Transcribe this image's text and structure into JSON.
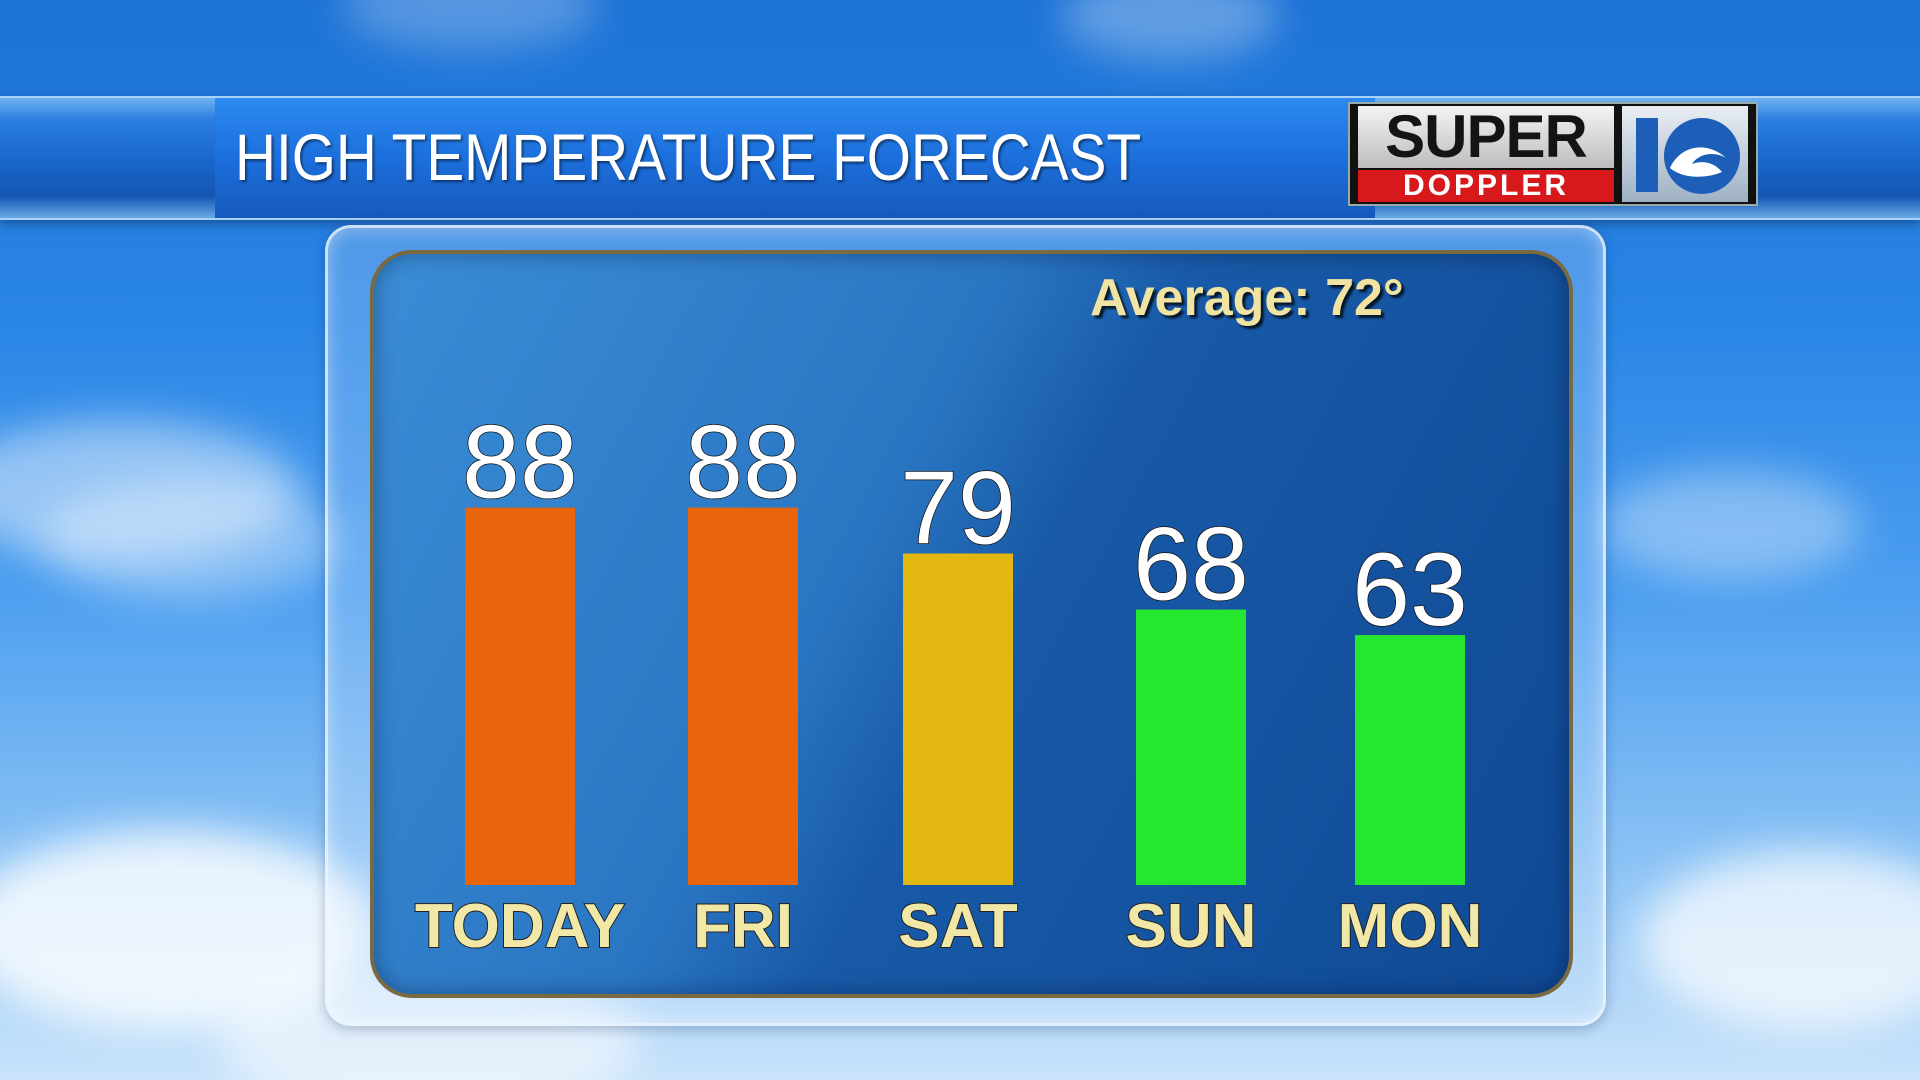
{
  "header": {
    "title": "HIGH TEMPERATURE FORECAST"
  },
  "logo": {
    "line1": "SUPER",
    "line2": "DOPPLER",
    "mark_colors": {
      "blue": "#1d5fb8",
      "wave": "#ffffff"
    }
  },
  "average_label": "Average: 72°",
  "colors": {
    "hot": "#e8650e",
    "warm": "#e1b710",
    "mild": "#25e72d",
    "label_yellow": "#f1e8a8"
  },
  "chart_data": {
    "type": "bar",
    "title": "HIGH TEMPERATURE FORECAST",
    "categories": [
      "TODAY",
      "FRI",
      "SAT",
      "SUN",
      "MON"
    ],
    "values": [
      88,
      88,
      79,
      68,
      63
    ],
    "bar_colors": [
      "#e8650e",
      "#e8650e",
      "#e1b710",
      "#25e72d",
      "#25e72d"
    ],
    "annotation": "Average: 72°",
    "xlabel": "",
    "ylabel": "",
    "grid": false,
    "legend": "none"
  }
}
